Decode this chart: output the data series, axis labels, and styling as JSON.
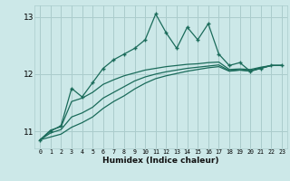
{
  "xlabel": "Humidex (Indice chaleur)",
  "bg_color": "#cce8e8",
  "grid_color": "#aacccc",
  "line_color": "#1a6b5a",
  "x_values": [
    0,
    1,
    2,
    3,
    4,
    5,
    6,
    7,
    8,
    9,
    10,
    11,
    12,
    13,
    14,
    15,
    16,
    17,
    18,
    19,
    20,
    21,
    22,
    23
  ],
  "zigzag_y": [
    10.85,
    11.0,
    11.1,
    11.75,
    11.6,
    11.85,
    12.1,
    12.25,
    12.35,
    12.45,
    12.6,
    13.05,
    12.72,
    12.45,
    12.82,
    12.6,
    12.88,
    12.35,
    12.15,
    12.2,
    12.05,
    12.1,
    12.15,
    12.15
  ],
  "line1_y": [
    10.85,
    11.02,
    11.08,
    11.52,
    11.58,
    11.68,
    11.82,
    11.9,
    11.97,
    12.02,
    12.07,
    12.1,
    12.13,
    12.15,
    12.17,
    12.18,
    12.2,
    12.21,
    12.08,
    12.09,
    12.08,
    12.12,
    12.15,
    12.15
  ],
  "line2_y": [
    10.85,
    10.97,
    11.03,
    11.25,
    11.32,
    11.42,
    11.58,
    11.68,
    11.78,
    11.88,
    11.95,
    12.0,
    12.04,
    12.07,
    12.1,
    12.12,
    12.14,
    12.16,
    12.06,
    12.07,
    12.06,
    12.11,
    12.15,
    12.15
  ],
  "line3_y": [
    10.85,
    10.9,
    10.95,
    11.07,
    11.15,
    11.25,
    11.4,
    11.52,
    11.62,
    11.74,
    11.84,
    11.92,
    11.97,
    12.01,
    12.05,
    12.08,
    12.11,
    12.13,
    12.05,
    12.07,
    12.05,
    12.1,
    12.15,
    12.15
  ],
  "ylim": [
    10.7,
    13.2
  ],
  "yticks": [
    11,
    12,
    13
  ],
  "xlim_min": -0.5,
  "xlim_max": 23.5
}
